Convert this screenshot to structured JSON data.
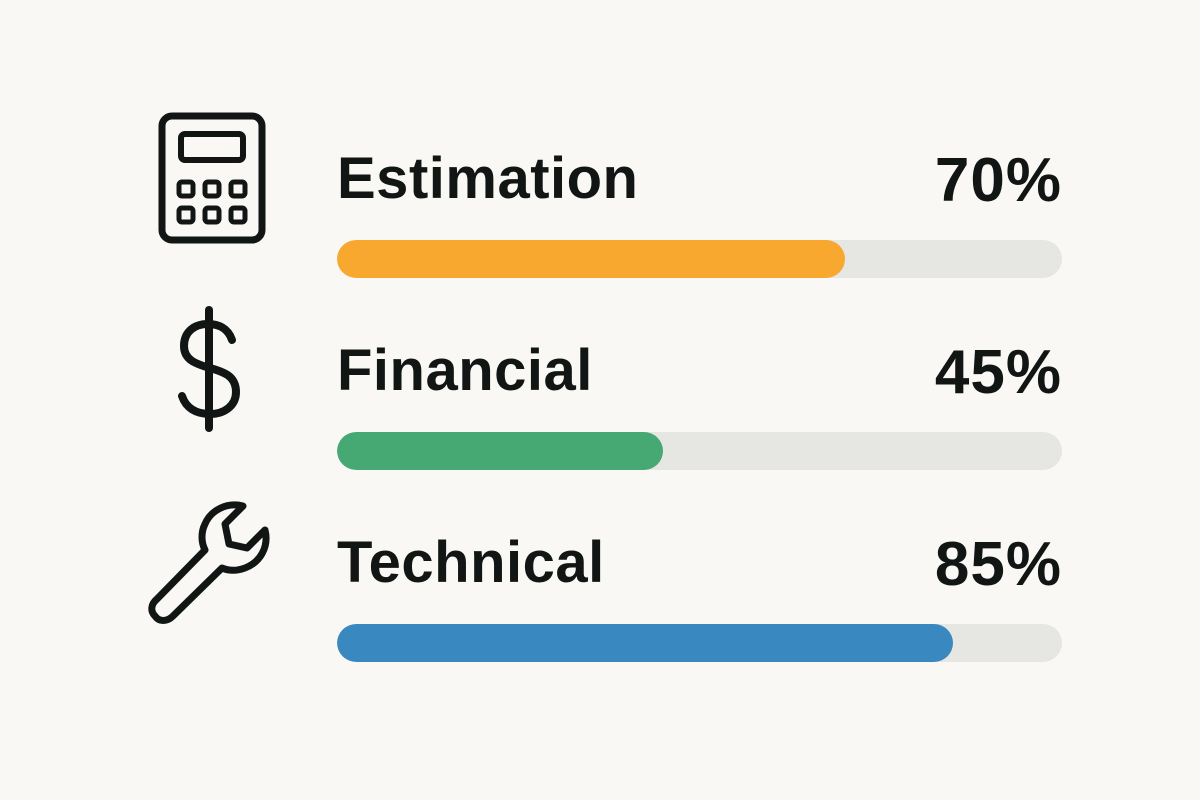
{
  "skills": [
    {
      "label": "Estimation",
      "percent_text": "70%",
      "value": 70,
      "color": "#f9a82f",
      "icon": "calculator-icon"
    },
    {
      "label": "Financial",
      "percent_text": "45%",
      "value": 45,
      "color": "#46a872",
      "icon": "dollar-icon"
    },
    {
      "label": "Technical",
      "percent_text": "85%",
      "value": 85,
      "color": "#3a88c0",
      "icon": "wrench-icon"
    }
  ]
}
